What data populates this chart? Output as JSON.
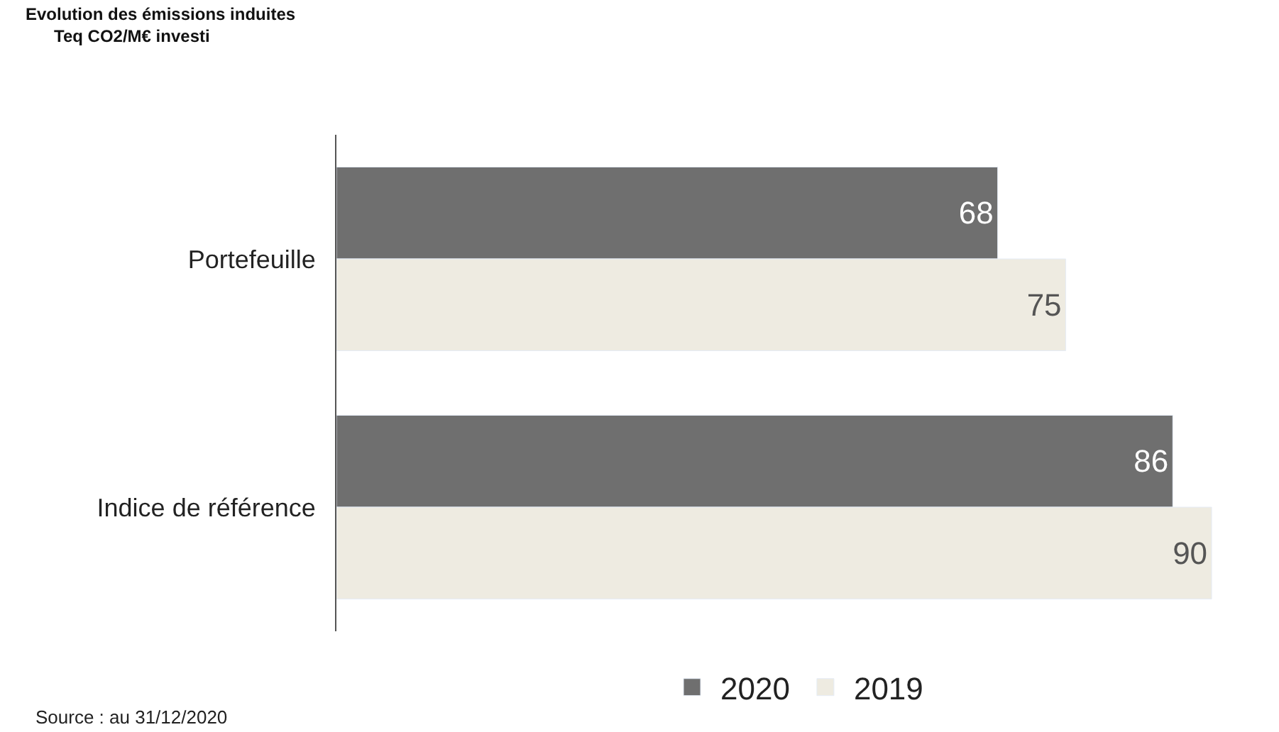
{
  "chart_data": {
    "type": "bar",
    "orientation": "horizontal",
    "title": "Evolution des émissions induites",
    "subtitle": "Teq CO2/M€ investi",
    "categories": [
      "Portefeuille",
      "Indice de référence"
    ],
    "series": [
      {
        "name": "2020",
        "color": "#6f6f6f",
        "values": [
          68,
          86
        ]
      },
      {
        "name": "2019",
        "color": "#eeebe1",
        "values": [
          75,
          90
        ]
      }
    ],
    "data_labels": true,
    "legend": "bottom",
    "tick_labels": "y",
    "annotations": [
      "Source : au 31/12/2020"
    ]
  }
}
